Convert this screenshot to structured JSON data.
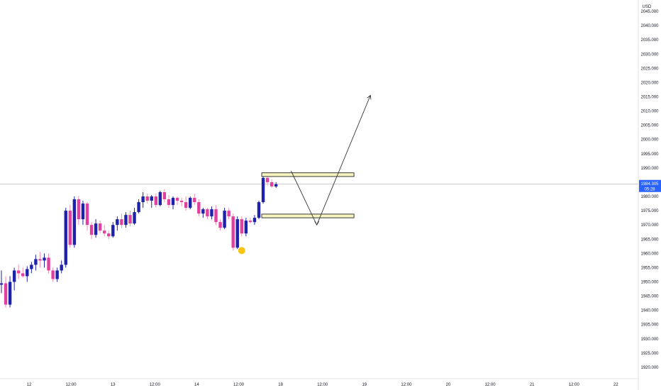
{
  "chart_data": {
    "type": "candlestick",
    "currency": "USD",
    "y_axis": {
      "ylim": [
        1917.0,
        2048.0
      ],
      "ticks": [
        "2045.000",
        "2040.000",
        "2035.000",
        "2030.000",
        "2025.000",
        "2020.000",
        "2015.000",
        "2010.000",
        "2005.000",
        "2000.000",
        "1995.000",
        "1990.000",
        "1985.000",
        "1980.000",
        "1975.000",
        "1970.000",
        "1965.000",
        "1960.000",
        "1955.000",
        "1950.000",
        "1945.000",
        "1940.000",
        "1935.000",
        "1930.000",
        "1925.000",
        "1920.000"
      ]
    },
    "x_axis": {
      "ticks": [
        "12",
        "12:00",
        "13",
        "12:00",
        "14",
        "12:00",
        "18",
        "12:00",
        "19",
        "12:00",
        "20",
        "12:00",
        "21",
        "12:00",
        "22"
      ]
    },
    "last_price": {
      "value": 1984.305,
      "label": "1984.305",
      "countdown": "05:28"
    },
    "colors": {
      "up": "#1e22aa",
      "down": "#e040a0",
      "wick_down": "#f48fb1",
      "zone_fill": "#f8f4c0",
      "zone_stroke": "#222222",
      "price_line": "#b2b5be",
      "marker": "#f5c518",
      "badge": "#2962ff"
    },
    "candles": [
      {
        "o": 1949.0,
        "h": 1954.0,
        "l": 1946.0,
        "c": 1949.5
      },
      {
        "o": 1949.5,
        "h": 1952.0,
        "l": 1941.0,
        "c": 1942.0
      },
      {
        "o": 1942.0,
        "h": 1952.0,
        "l": 1941.0,
        "c": 1950.0
      },
      {
        "o": 1950.0,
        "h": 1955.0,
        "l": 1947.0,
        "c": 1954.0
      },
      {
        "o": 1954.0,
        "h": 1956.0,
        "l": 1951.0,
        "c": 1953.0
      },
      {
        "o": 1953.0,
        "h": 1955.0,
        "l": 1951.5,
        "c": 1952.0
      },
      {
        "o": 1952.0,
        "h": 1955.5,
        "l": 1950.0,
        "c": 1954.5
      },
      {
        "o": 1954.5,
        "h": 1957.0,
        "l": 1953.0,
        "c": 1956.0
      },
      {
        "o": 1956.0,
        "h": 1959.5,
        "l": 1954.0,
        "c": 1958.0
      },
      {
        "o": 1958.0,
        "h": 1960.5,
        "l": 1955.0,
        "c": 1957.5
      },
      {
        "o": 1957.5,
        "h": 1960.0,
        "l": 1955.0,
        "c": 1958.5
      },
      {
        "o": 1958.5,
        "h": 1960.0,
        "l": 1953.0,
        "c": 1954.0
      },
      {
        "o": 1954.0,
        "h": 1955.0,
        "l": 1950.0,
        "c": 1951.0
      },
      {
        "o": 1951.0,
        "h": 1955.0,
        "l": 1950.0,
        "c": 1954.0
      },
      {
        "o": 1954.0,
        "h": 1957.5,
        "l": 1953.0,
        "c": 1956.0
      },
      {
        "o": 1956.0,
        "h": 1976.0,
        "l": 1955.0,
        "c": 1975.0
      },
      {
        "o": 1975.0,
        "h": 1977.0,
        "l": 1962.0,
        "c": 1963.0
      },
      {
        "o": 1963.0,
        "h": 1980.0,
        "l": 1962.0,
        "c": 1979.0
      },
      {
        "o": 1979.0,
        "h": 1980.0,
        "l": 1970.0,
        "c": 1972.0
      },
      {
        "o": 1972.0,
        "h": 1978.5,
        "l": 1970.0,
        "c": 1977.5
      },
      {
        "o": 1977.5,
        "h": 1978.0,
        "l": 1968.0,
        "c": 1970.0
      },
      {
        "o": 1970.0,
        "h": 1971.0,
        "l": 1965.0,
        "c": 1966.5
      },
      {
        "o": 1966.5,
        "h": 1972.0,
        "l": 1965.5,
        "c": 1970.5
      },
      {
        "o": 1970.5,
        "h": 1971.5,
        "l": 1967.0,
        "c": 1968.0
      },
      {
        "o": 1968.0,
        "h": 1970.0,
        "l": 1966.0,
        "c": 1967.0
      },
      {
        "o": 1967.0,
        "h": 1968.0,
        "l": 1965.0,
        "c": 1966.0
      },
      {
        "o": 1966.0,
        "h": 1971.0,
        "l": 1965.5,
        "c": 1970.0
      },
      {
        "o": 1970.0,
        "h": 1973.0,
        "l": 1968.0,
        "c": 1972.0
      },
      {
        "o": 1972.0,
        "h": 1974.0,
        "l": 1969.0,
        "c": 1970.0
      },
      {
        "o": 1970.0,
        "h": 1974.5,
        "l": 1969.0,
        "c": 1973.5
      },
      {
        "o": 1973.5,
        "h": 1975.0,
        "l": 1969.5,
        "c": 1970.5
      },
      {
        "o": 1970.5,
        "h": 1976.0,
        "l": 1970.0,
        "c": 1974.5
      },
      {
        "o": 1974.5,
        "h": 1979.0,
        "l": 1974.0,
        "c": 1978.0
      },
      {
        "o": 1978.0,
        "h": 1981.5,
        "l": 1976.0,
        "c": 1980.0
      },
      {
        "o": 1980.0,
        "h": 1981.0,
        "l": 1977.5,
        "c": 1978.5
      },
      {
        "o": 1978.5,
        "h": 1980.5,
        "l": 1976.0,
        "c": 1980.0
      },
      {
        "o": 1980.0,
        "h": 1981.0,
        "l": 1976.0,
        "c": 1977.0
      },
      {
        "o": 1977.0,
        "h": 1982.0,
        "l": 1976.5,
        "c": 1981.5
      },
      {
        "o": 1981.5,
        "h": 1982.5,
        "l": 1978.0,
        "c": 1979.0
      },
      {
        "o": 1979.0,
        "h": 1980.5,
        "l": 1976.0,
        "c": 1977.0
      },
      {
        "o": 1977.0,
        "h": 1980.0,
        "l": 1975.5,
        "c": 1979.5
      },
      {
        "o": 1979.5,
        "h": 1980.0,
        "l": 1977.0,
        "c": 1978.5
      },
      {
        "o": 1978.5,
        "h": 1979.5,
        "l": 1976.5,
        "c": 1978.0
      },
      {
        "o": 1978.0,
        "h": 1980.0,
        "l": 1975.0,
        "c": 1976.0
      },
      {
        "o": 1976.0,
        "h": 1980.0,
        "l": 1975.5,
        "c": 1979.5
      },
      {
        "o": 1979.5,
        "h": 1981.0,
        "l": 1977.0,
        "c": 1978.0
      },
      {
        "o": 1978.0,
        "h": 1979.0,
        "l": 1973.0,
        "c": 1974.0
      },
      {
        "o": 1974.0,
        "h": 1976.0,
        "l": 1972.5,
        "c": 1975.5
      },
      {
        "o": 1975.5,
        "h": 1976.0,
        "l": 1972.0,
        "c": 1973.0
      },
      {
        "o": 1973.0,
        "h": 1976.5,
        "l": 1972.0,
        "c": 1975.5
      },
      {
        "o": 1975.5,
        "h": 1977.0,
        "l": 1970.0,
        "c": 1971.0
      },
      {
        "o": 1971.0,
        "h": 1972.0,
        "l": 1968.0,
        "c": 1969.0
      },
      {
        "o": 1969.0,
        "h": 1976.0,
        "l": 1968.5,
        "c": 1975.0
      },
      {
        "o": 1975.0,
        "h": 1976.0,
        "l": 1972.0,
        "c": 1973.0
      },
      {
        "o": 1973.0,
        "h": 1974.0,
        "l": 1961.0,
        "c": 1962.0
      },
      {
        "o": 1962.0,
        "h": 1973.0,
        "l": 1961.5,
        "c": 1972.0
      },
      {
        "o": 1972.0,
        "h": 1973.0,
        "l": 1966.0,
        "c": 1967.0
      },
      {
        "o": 1967.0,
        "h": 1972.5,
        "l": 1966.0,
        "c": 1971.5
      },
      {
        "o": 1971.5,
        "h": 1972.5,
        "l": 1970.5,
        "c": 1971.0
      },
      {
        "o": 1971.0,
        "h": 1973.5,
        "l": 1970.0,
        "c": 1972.5
      },
      {
        "o": 1972.5,
        "h": 1978.5,
        "l": 1972.0,
        "c": 1978.0
      },
      {
        "o": 1978.0,
        "h": 1987.5,
        "l": 1977.5,
        "c": 1986.5
      },
      {
        "o": 1986.5,
        "h": 1987.0,
        "l": 1984.0,
        "c": 1985.0
      },
      {
        "o": 1985.0,
        "h": 1986.0,
        "l": 1983.0,
        "c": 1983.5
      },
      {
        "o": 1983.5,
        "h": 1985.0,
        "l": 1983.0,
        "c": 1984.3
      }
    ],
    "zones": [
      {
        "top": 1988.3,
        "bottom": 1987.0
      },
      {
        "top": 1973.8,
        "bottom": 1972.5
      }
    ],
    "projection": [
      {
        "candle": 67.5,
        "price": 1989.0
      },
      {
        "candle": 73.5,
        "price": 1970.0
      },
      {
        "candle": 86.0,
        "price": 2015.5
      }
    ],
    "marker": {
      "candle": 56,
      "price": 1961.0
    }
  }
}
